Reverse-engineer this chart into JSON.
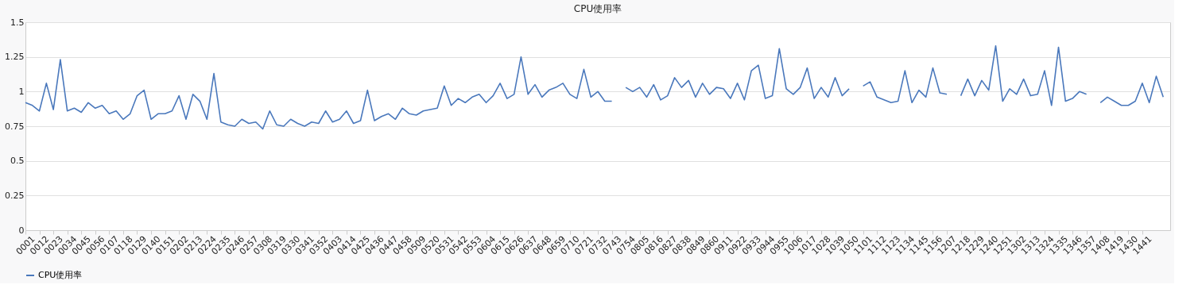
{
  "chart_data": {
    "type": "line",
    "title": "CPU使用率",
    "categories": [
      "0001",
      null,
      "0012",
      null,
      "0023",
      null,
      "0034",
      null,
      "0045",
      null,
      "0056",
      null,
      "0107",
      null,
      "0118",
      null,
      "0129",
      null,
      "0140",
      null,
      "0151",
      null,
      "0202",
      null,
      "0213",
      null,
      "0224",
      null,
      "0235",
      null,
      "0246",
      null,
      "0257",
      null,
      "0308",
      null,
      "0319",
      null,
      "0330",
      null,
      "0341",
      null,
      "0352",
      null,
      "0403",
      null,
      "0414",
      null,
      "0425",
      null,
      "0436",
      null,
      "0447",
      null,
      "0458",
      null,
      "0509",
      null,
      "0520",
      null,
      "0531",
      null,
      "0542",
      null,
      "0553",
      null,
      "0604",
      null,
      "0615",
      null,
      "0626",
      null,
      "0637",
      null,
      "0648",
      null,
      "0659",
      null,
      "0710",
      null,
      "0721",
      null,
      "0732",
      null,
      "0743",
      null,
      "0754",
      null,
      "0805",
      null,
      "0816",
      null,
      "0827",
      null,
      "0838",
      null,
      "0849",
      null,
      "0860",
      null,
      "0911",
      null,
      "0922",
      null,
      "0933",
      null,
      "0944",
      null,
      "0955",
      null,
      "1006",
      null,
      "1017",
      null,
      "1028",
      null,
      "1039",
      null,
      "1050",
      null,
      "1101",
      null,
      "1112",
      null,
      "1123",
      null,
      "1134",
      null,
      "1145",
      null,
      "1156",
      null,
      "1207",
      null,
      "1218",
      null,
      "1229",
      null,
      "1240",
      null,
      "1251",
      null,
      "1302",
      null,
      "1313",
      null,
      "1324",
      null,
      "1335",
      null,
      "1346",
      null,
      "1357",
      null,
      "1408",
      null,
      "1419",
      null,
      "1430",
      null,
      "1441",
      null,
      null,
      null
    ],
    "series": [
      {
        "name": "CPU使用率",
        "color": "#4a78bc",
        "values": [
          0.92,
          0.9,
          0.86,
          1.06,
          0.87,
          1.23,
          0.86,
          0.88,
          0.85,
          0.92,
          0.88,
          0.9,
          0.84,
          0.86,
          0.8,
          0.84,
          0.97,
          1.01,
          0.8,
          0.84,
          0.84,
          0.86,
          0.97,
          0.8,
          0.98,
          0.93,
          0.8,
          1.13,
          0.78,
          0.76,
          0.75,
          0.8,
          0.77,
          0.78,
          0.73,
          0.86,
          0.76,
          0.75,
          0.8,
          0.77,
          0.75,
          0.78,
          0.77,
          0.86,
          0.78,
          0.8,
          0.86,
          0.77,
          0.79,
          1.01,
          0.79,
          0.82,
          0.84,
          0.8,
          0.88,
          0.84,
          0.83,
          0.86,
          0.87,
          0.88,
          1.04,
          0.9,
          0.95,
          0.92,
          0.96,
          0.98,
          0.92,
          0.97,
          1.06,
          0.95,
          0.98,
          1.25,
          0.98,
          1.05,
          0.96,
          1.01,
          1.03,
          1.06,
          0.98,
          0.95,
          1.16,
          0.96,
          1.0,
          0.93,
          0.93,
          null,
          1.03,
          1.0,
          1.03,
          0.96,
          1.05,
          0.94,
          0.97,
          1.1,
          1.03,
          1.08,
          0.96,
          1.06,
          0.98,
          1.03,
          1.02,
          0.95,
          1.06,
          0.94,
          1.15,
          1.19,
          0.95,
          0.97,
          1.31,
          1.02,
          0.98,
          1.03,
          1.17,
          0.95,
          1.03,
          0.96,
          1.1,
          0.97,
          1.02,
          null,
          1.04,
          1.07,
          0.96,
          0.94,
          0.92,
          0.93,
          1.15,
          0.92,
          1.01,
          0.96,
          1.17,
          0.99,
          0.98,
          null,
          0.97,
          1.09,
          0.97,
          1.08,
          1.01,
          1.33,
          0.93,
          1.02,
          0.98,
          1.09,
          0.97,
          0.98,
          1.15,
          0.9,
          1.32,
          0.93,
          0.95,
          1.0,
          0.98,
          null,
          0.92,
          0.96,
          0.93,
          0.9,
          0.9,
          0.93,
          1.06,
          0.92,
          1.11,
          0.96
        ]
      }
    ],
    "ylim": [
      0,
      1.5
    ],
    "yticks": [
      0,
      0.25,
      0.5,
      0.75,
      1,
      1.25,
      1.5
    ],
    "grid": "y",
    "legend": "bottom",
    "marker": "none",
    "line_style": "solid"
  }
}
